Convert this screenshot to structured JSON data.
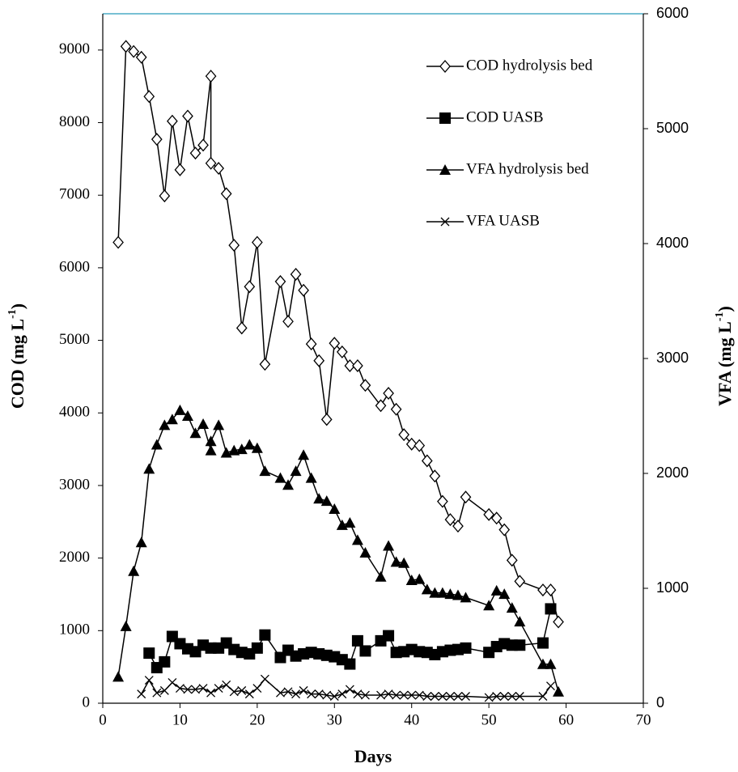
{
  "chart_data": {
    "type": "line",
    "xlabel": "Days",
    "ylabel": [
      "COD (mg L",
      "-1",
      ")"
    ],
    "y2label": [
      "VFA (mg L",
      "-1",
      ")"
    ],
    "xlim": [
      0,
      70
    ],
    "xticks": [
      0,
      10,
      20,
      30,
      40,
      50,
      60,
      70
    ],
    "ylim": [
      0,
      9500
    ],
    "yticks": [
      0,
      1000,
      2000,
      3000,
      4000,
      5000,
      6000,
      7000,
      8000,
      9000
    ],
    "y2lim": [
      0,
      6000
    ],
    "y2ticks": [
      0,
      1000,
      2000,
      3000,
      4000,
      5000,
      6000
    ],
    "frame_color": "#4bacc6",
    "legend": "upper right",
    "series": [
      {
        "name": "COD hydrolysis bed",
        "color": "#000000",
        "marker": "diamond",
        "axis": "y",
        "x": [
          2,
          3,
          4,
          5,
          6,
          7,
          8,
          9,
          10,
          11,
          12,
          13,
          14,
          14,
          15,
          16,
          17,
          18,
          19,
          20,
          21,
          23,
          24,
          25,
          26,
          27,
          28,
          29,
          30,
          31,
          32,
          33,
          34,
          36,
          37,
          38,
          39,
          40,
          41,
          42,
          43,
          44,
          45,
          46,
          47,
          50,
          51,
          52,
          53,
          54,
          57,
          58,
          59
        ],
        "values": [
          6350,
          9050,
          8980,
          8900,
          8360,
          7770,
          6990,
          8020,
          7350,
          8090,
          7580,
          7690,
          8640,
          7440,
          7370,
          7020,
          6310,
          5170,
          5740,
          6350,
          4670,
          5810,
          5260,
          5910,
          5690,
          4950,
          4720,
          3910,
          4960,
          4840,
          4650,
          4650,
          4380,
          4100,
          4270,
          4050,
          3700,
          3570,
          3550,
          3340,
          3130,
          2780,
          2530,
          2440,
          2840,
          2600,
          2550,
          2390,
          1970,
          1680,
          1560,
          1560,
          1120
        ]
      },
      {
        "name": "COD UASB",
        "color": "#000000",
        "marker": "square",
        "axis": "y",
        "x": [
          6,
          7,
          8,
          9,
          10,
          11,
          12,
          13,
          14,
          15,
          16,
          17,
          18,
          19,
          20,
          21,
          23,
          24,
          25,
          26,
          27,
          28,
          29,
          30,
          31,
          32,
          33,
          34,
          36,
          37,
          38,
          39,
          40,
          41,
          42,
          43,
          44,
          45,
          46,
          47,
          50,
          51,
          52,
          53,
          54,
          57,
          58
        ],
        "values": [
          690,
          490,
          570,
          920,
          820,
          750,
          710,
          800,
          760,
          760,
          830,
          740,
          700,
          680,
          760,
          940,
          630,
          730,
          650,
          680,
          700,
          680,
          660,
          640,
          600,
          540,
          860,
          720,
          860,
          930,
          700,
          710,
          740,
          710,
          700,
          670,
          710,
          730,
          740,
          760,
          700,
          780,
          820,
          800,
          800,
          830,
          1300
        ]
      },
      {
        "name": "VFA hydrolysis bed",
        "color": "#000000",
        "marker": "triangle",
        "axis": "y2",
        "x": [
          2,
          3,
          4,
          5,
          6,
          7,
          8,
          9,
          10,
          11,
          12,
          13,
          14,
          14,
          15,
          16,
          17,
          18,
          19,
          20,
          21,
          23,
          24,
          25,
          26,
          27,
          28,
          29,
          30,
          31,
          32,
          33,
          34,
          36,
          37,
          38,
          39,
          40,
          41,
          42,
          43,
          44,
          45,
          46,
          47,
          50,
          51,
          52,
          53,
          54,
          57,
          58,
          59
        ],
        "values": [
          230,
          670,
          1150,
          1400,
          2040,
          2250,
          2420,
          2470,
          2550,
          2500,
          2350,
          2430,
          2200,
          2280,
          2420,
          2180,
          2200,
          2210,
          2250,
          2220,
          2020,
          1960,
          1900,
          2020,
          2160,
          1960,
          1780,
          1760,
          1690,
          1550,
          1570,
          1420,
          1310,
          1100,
          1370,
          1230,
          1220,
          1070,
          1080,
          990,
          960,
          960,
          950,
          940,
          920,
          850,
          980,
          950,
          830,
          710,
          340,
          340,
          100
        ]
      },
      {
        "name": "VFA UASB",
        "color": "#000000",
        "marker": "x",
        "axis": "y2",
        "x": [
          5,
          6,
          7,
          8,
          9,
          10,
          11,
          12,
          13,
          14,
          15,
          16,
          17,
          18,
          19,
          20,
          21,
          23,
          24,
          25,
          26,
          27,
          28,
          29,
          30,
          31,
          32,
          33,
          34,
          36,
          37,
          38,
          39,
          40,
          41,
          42,
          43,
          44,
          45,
          46,
          47,
          50,
          51,
          52,
          53,
          54,
          57,
          58
        ],
        "values": [
          80,
          200,
          90,
          110,
          180,
          130,
          120,
          120,
          130,
          90,
          130,
          160,
          100,
          110,
          80,
          130,
          210,
          90,
          100,
          80,
          110,
          80,
          80,
          70,
          60,
          80,
          120,
          80,
          70,
          70,
          80,
          70,
          70,
          70,
          70,
          60,
          60,
          60,
          60,
          60,
          60,
          50,
          60,
          60,
          60,
          60,
          60,
          150
        ]
      }
    ]
  }
}
